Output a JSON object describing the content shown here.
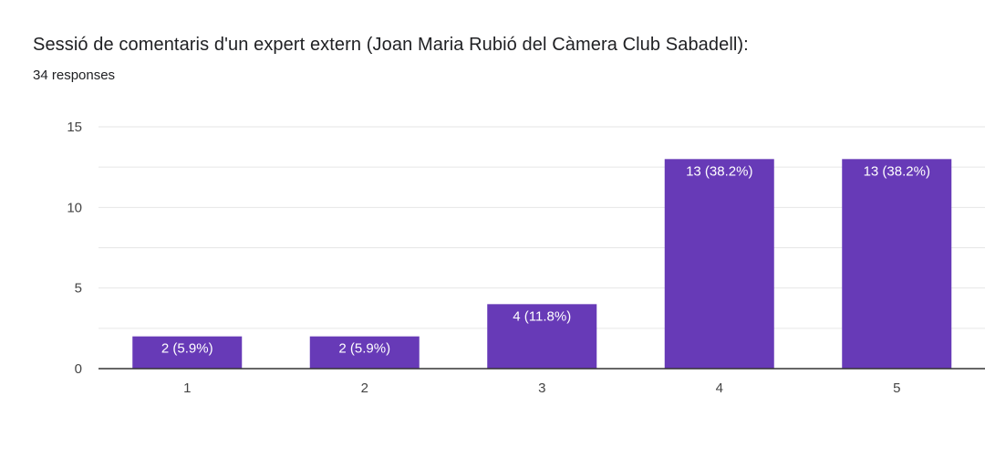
{
  "header": {
    "title": "Sessió de comentaris d'un expert extern (Joan Maria Rubió del Càmera Club Sabadell):",
    "responses": "34 responses"
  },
  "colors": {
    "bar": "#673ab7",
    "grid": "#e6e6e6",
    "axis": "#333333",
    "bar_label_text": "#ffffff"
  },
  "chart_data": {
    "type": "bar",
    "categories": [
      "1",
      "2",
      "3",
      "4",
      "5"
    ],
    "values": [
      2,
      2,
      4,
      13,
      13
    ],
    "labels": [
      "2 (5.9%)",
      "2 (5.9%)",
      "4 (11.8%)",
      "13 (38.2%)",
      "13 (38.2%)"
    ],
    "ylim": [
      0,
      15
    ],
    "yticks": [
      0,
      5,
      10,
      15
    ],
    "grid": true,
    "legend": "none"
  }
}
